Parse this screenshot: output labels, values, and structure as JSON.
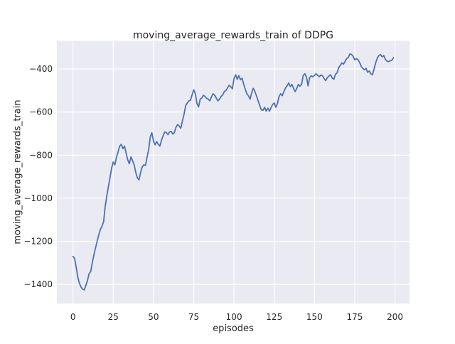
{
  "chart_data": {
    "type": "line",
    "title": "moving_average_rewards_train of DDPG",
    "xlabel": "episodes",
    "ylabel": "moving_average_rewards_train",
    "grid": true,
    "legend_position": "none",
    "plot_bg": "#eaeaf2",
    "grid_color": "#ffffff",
    "text_color": "#262626",
    "fig_bg": "#ffffff",
    "xticks": [
      0,
      25,
      50,
      75,
      100,
      125,
      150,
      175,
      200
    ],
    "yticks": [
      -400,
      -600,
      -800,
      -1000,
      -1200,
      -1400
    ],
    "xlim": [
      -10,
      209
    ],
    "ylim": [
      -1489,
      -270
    ],
    "series": [
      {
        "name": "moving_average_rewards_train",
        "color": "#4c72b0",
        "x_start": 0,
        "x_step": 1,
        "values": [
          -1270,
          -1278,
          -1320,
          -1365,
          -1395,
          -1412,
          -1422,
          -1425,
          -1405,
          -1382,
          -1350,
          -1340,
          -1300,
          -1262,
          -1230,
          -1200,
          -1170,
          -1145,
          -1130,
          -1110,
          -1040,
          -990,
          -945,
          -905,
          -860,
          -832,
          -845,
          -810,
          -785,
          -758,
          -750,
          -770,
          -758,
          -790,
          -822,
          -840,
          -808,
          -825,
          -845,
          -880,
          -905,
          -915,
          -880,
          -855,
          -845,
          -848,
          -810,
          -775,
          -715,
          -696,
          -735,
          -752,
          -737,
          -750,
          -758,
          -730,
          -710,
          -692,
          -695,
          -705,
          -692,
          -690,
          -702,
          -695,
          -670,
          -658,
          -665,
          -675,
          -640,
          -610,
          -570,
          -558,
          -548,
          -545,
          -520,
          -497,
          -515,
          -560,
          -576,
          -540,
          -535,
          -522,
          -528,
          -536,
          -540,
          -548,
          -530,
          -515,
          -522,
          -535,
          -548,
          -540,
          -528,
          -520,
          -505,
          -500,
          -488,
          -476,
          -482,
          -492,
          -445,
          -427,
          -448,
          -431,
          -450,
          -443,
          -470,
          -495,
          -515,
          -525,
          -540,
          -510,
          -490,
          -505,
          -525,
          -548,
          -570,
          -590,
          -592,
          -578,
          -596,
          -582,
          -596,
          -580,
          -565,
          -558,
          -578,
          -560,
          -528,
          -515,
          -524,
          -505,
          -488,
          -478,
          -465,
          -482,
          -472,
          -490,
          -505,
          -490,
          -472,
          -480,
          -470,
          -430,
          -422,
          -438,
          -478,
          -440,
          -432,
          -436,
          -430,
          -422,
          -430,
          -436,
          -428,
          -432,
          -445,
          -454,
          -440,
          -432,
          -427,
          -442,
          -448,
          -425,
          -418,
          -395,
          -383,
          -372,
          -378,
          -365,
          -352,
          -347,
          -330,
          -333,
          -341,
          -358,
          -352,
          -356,
          -370,
          -388,
          -398,
          -404,
          -397,
          -415,
          -410,
          -422,
          -427,
          -400,
          -372,
          -349,
          -338,
          -333,
          -344,
          -338,
          -355,
          -364,
          -366,
          -362,
          -360,
          -348
        ]
      }
    ]
  }
}
